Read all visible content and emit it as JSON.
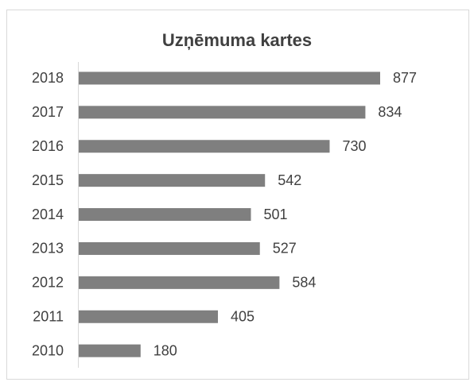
{
  "chart_data": {
    "type": "bar",
    "orientation": "horizontal",
    "title": "Uzņēmuma kartes",
    "categories": [
      "2018",
      "2017",
      "2016",
      "2015",
      "2014",
      "2013",
      "2012",
      "2011",
      "2010"
    ],
    "values": [
      877,
      834,
      730,
      542,
      501,
      527,
      584,
      405,
      180
    ],
    "color": "#7f7f7f"
  }
}
